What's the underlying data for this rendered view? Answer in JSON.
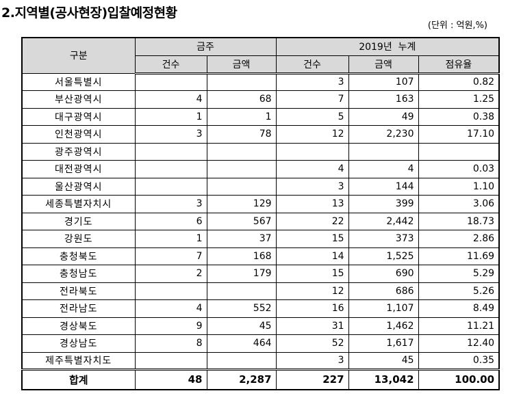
{
  "title": "2.지역별(공사현장)입찰예정현황",
  "unit_note": "(단위 : 억원,%)",
  "table": {
    "header": {
      "category": "구분",
      "group_weekly": "금주",
      "group_cumulative": "2019년  누계",
      "sub": [
        "건수",
        "금액",
        "건수",
        "금액",
        "점유율"
      ]
    },
    "rows": [
      {
        "region": "서울특별시",
        "week_count": "",
        "week_amount": "",
        "cum_count": "3",
        "cum_amount": "107",
        "share": "0.82"
      },
      {
        "region": "부산광역시",
        "week_count": "4",
        "week_amount": "68",
        "cum_count": "7",
        "cum_amount": "163",
        "share": "1.25"
      },
      {
        "region": "대구광역시",
        "week_count": "1",
        "week_amount": "1",
        "cum_count": "5",
        "cum_amount": "49",
        "share": "0.38"
      },
      {
        "region": "인천광역시",
        "week_count": "3",
        "week_amount": "78",
        "cum_count": "12",
        "cum_amount": "2,230",
        "share": "17.10"
      },
      {
        "region": "광주광역시",
        "week_count": "",
        "week_amount": "",
        "cum_count": "",
        "cum_amount": "",
        "share": ""
      },
      {
        "region": "대전광역시",
        "week_count": "",
        "week_amount": "",
        "cum_count": "4",
        "cum_amount": "4",
        "share": "0.03"
      },
      {
        "region": "울산광역시",
        "week_count": "",
        "week_amount": "",
        "cum_count": "3",
        "cum_amount": "144",
        "share": "1.10"
      },
      {
        "region": "세종특별자치시",
        "week_count": "3",
        "week_amount": "129",
        "cum_count": "13",
        "cum_amount": "399",
        "share": "3.06"
      },
      {
        "region": "경기도",
        "week_count": "6",
        "week_amount": "567",
        "cum_count": "22",
        "cum_amount": "2,442",
        "share": "18.73"
      },
      {
        "region": "강원도",
        "week_count": "1",
        "week_amount": "37",
        "cum_count": "15",
        "cum_amount": "373",
        "share": "2.86"
      },
      {
        "region": "충청북도",
        "week_count": "7",
        "week_amount": "168",
        "cum_count": "14",
        "cum_amount": "1,525",
        "share": "11.69"
      },
      {
        "region": "충청남도",
        "week_count": "2",
        "week_amount": "179",
        "cum_count": "15",
        "cum_amount": "690",
        "share": "5.29"
      },
      {
        "region": "전라북도",
        "week_count": "",
        "week_amount": "",
        "cum_count": "12",
        "cum_amount": "686",
        "share": "5.26"
      },
      {
        "region": "전라남도",
        "week_count": "4",
        "week_amount": "552",
        "cum_count": "16",
        "cum_amount": "1,107",
        "share": "8.49"
      },
      {
        "region": "경상북도",
        "week_count": "9",
        "week_amount": "45",
        "cum_count": "31",
        "cum_amount": "1,462",
        "share": "11.21"
      },
      {
        "region": "경상남도",
        "week_count": "8",
        "week_amount": "464",
        "cum_count": "52",
        "cum_amount": "1,617",
        "share": "12.40"
      },
      {
        "region": "제주특별자치도",
        "week_count": "",
        "week_amount": "",
        "cum_count": "3",
        "cum_amount": "45",
        "share": "0.35"
      }
    ],
    "total": {
      "region": "합계",
      "week_count": "48",
      "week_amount": "2,287",
      "cum_count": "227",
      "cum_amount": "13,042",
      "share": "100.00"
    }
  }
}
